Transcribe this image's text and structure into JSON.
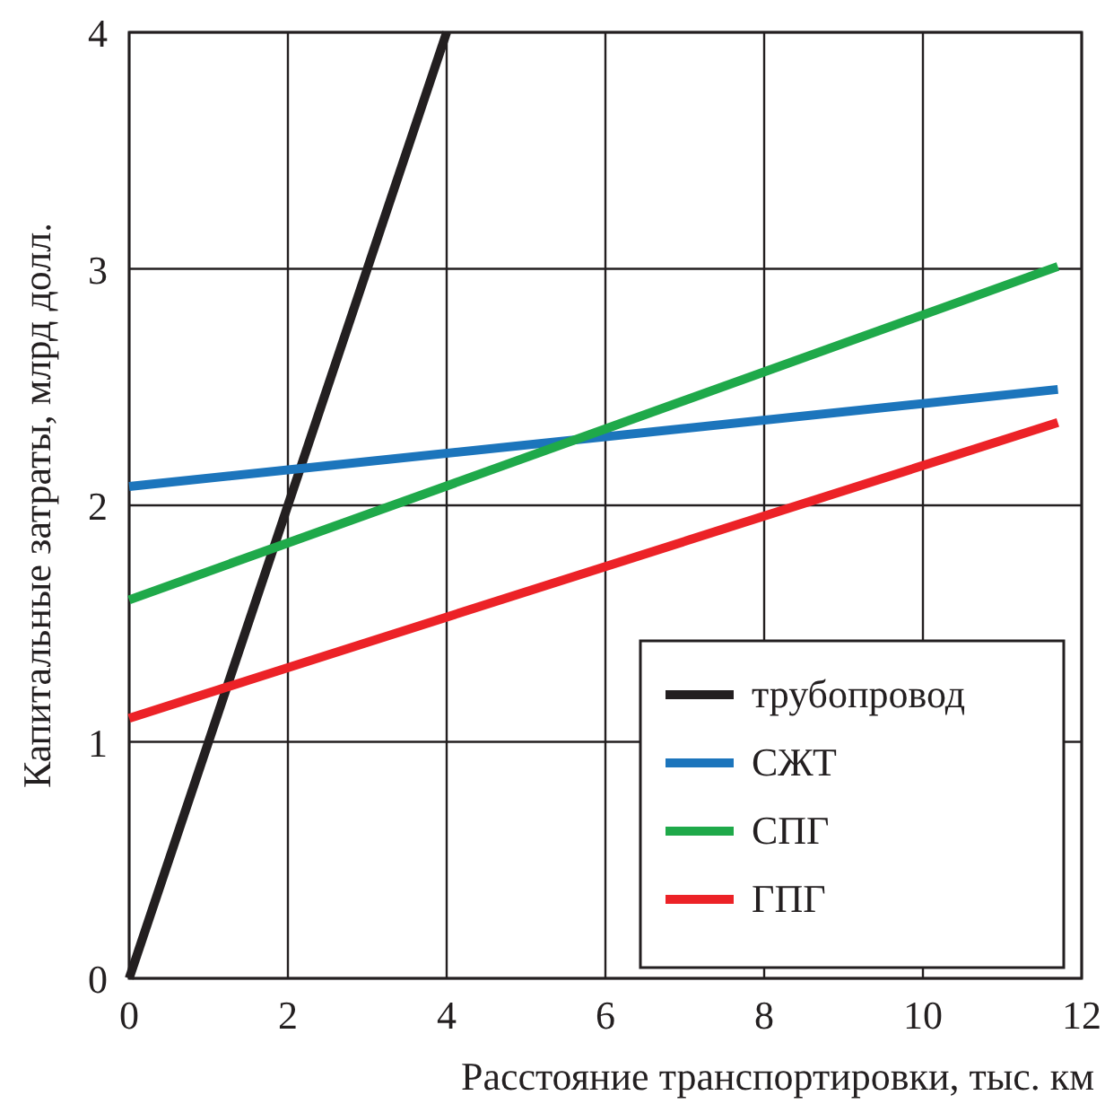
{
  "chart_data": {
    "type": "line",
    "xlabel": "Расстояние транспортировки, тыс. км",
    "ylabel": "Капитальные затраты, млрд долл.",
    "xlim": [
      0,
      12
    ],
    "ylim": [
      0,
      4
    ],
    "xticks": [
      0,
      2,
      4,
      6,
      8,
      10,
      12
    ],
    "yticks": [
      0,
      1,
      2,
      3,
      4
    ],
    "grid": true,
    "legend": "bottom right",
    "line_style": "solid",
    "marker": "none",
    "series": [
      {
        "name": "трубопровод",
        "color": "#231f20",
        "x": [
          0,
          4
        ],
        "values": [
          0,
          4
        ]
      },
      {
        "name": "СЖТ",
        "color": "#1c75bc",
        "x": [
          0,
          11.7
        ],
        "values": [
          2.08,
          2.49
        ]
      },
      {
        "name": "СПГ",
        "color": "#1fa94a",
        "x": [
          0,
          11.7
        ],
        "values": [
          1.6,
          3.01
        ]
      },
      {
        "name": "ГПГ",
        "color": "#ec2227",
        "x": [
          0,
          11.7
        ],
        "values": [
          1.1,
          2.35
        ]
      }
    ]
  }
}
